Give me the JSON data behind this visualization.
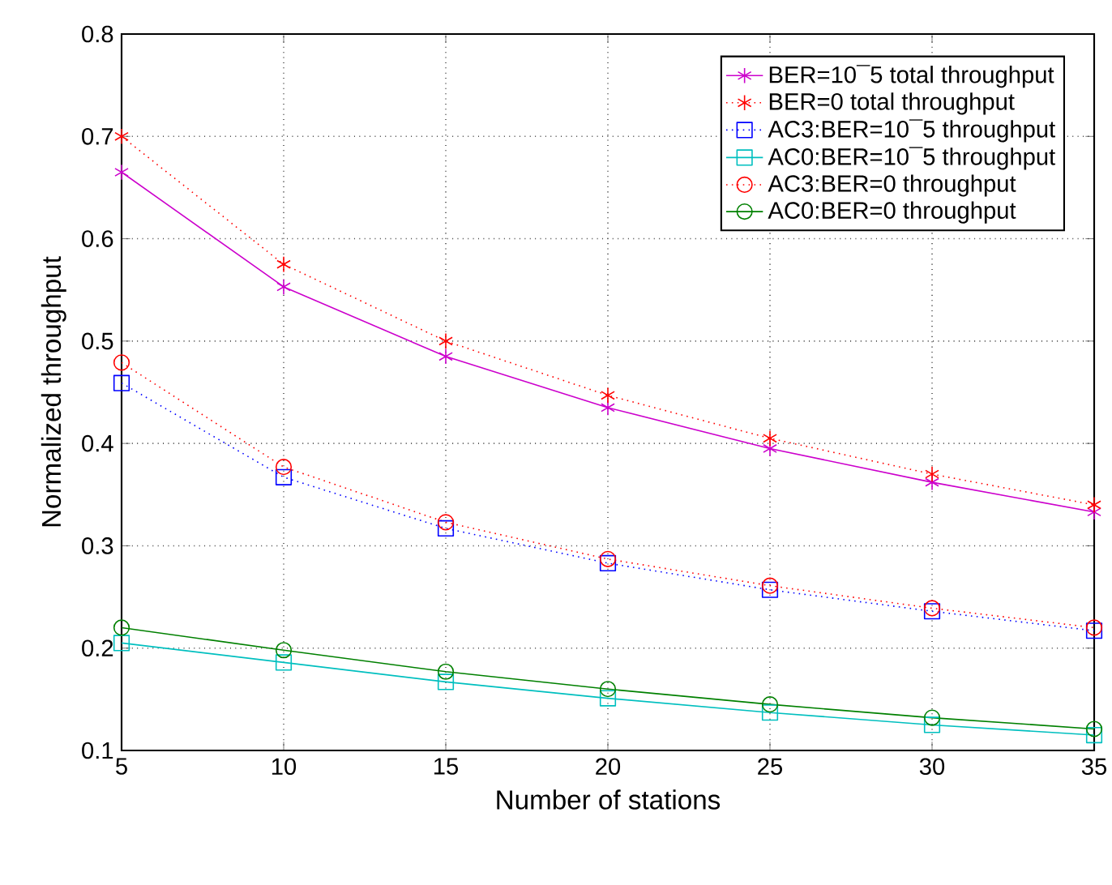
{
  "chart_data": {
    "type": "line",
    "xlabel": "Number of stations",
    "ylabel": "Normalized throughput",
    "x": [
      5,
      10,
      15,
      20,
      25,
      30,
      35
    ],
    "xlim": [
      5,
      35
    ],
    "xticks": [
      5,
      10,
      15,
      20,
      25,
      30,
      35
    ],
    "ylim": [
      0.1,
      0.8
    ],
    "yticks": [
      0.1,
      0.2,
      0.3,
      0.4,
      0.5,
      0.6,
      0.7,
      0.8
    ],
    "grid": true,
    "legend": "top right",
    "series": [
      {
        "name": "BER=10¯5 total throughput",
        "color": "#cc00cc",
        "marker": "cross",
        "line_style": "solid",
        "values": [
          0.665,
          0.553,
          0.485,
          0.435,
          0.395,
          0.362,
          0.333
        ]
      },
      {
        "name": "BER=0  total throughput",
        "color": "#ff0000",
        "marker": "cross",
        "line_style": "dotted",
        "values": [
          0.7,
          0.575,
          0.5,
          0.447,
          0.405,
          0.37,
          0.34
        ]
      },
      {
        "name": "AC3:BER=10¯5 throughput",
        "color": "#0000ff",
        "marker": "square",
        "line_style": "dotted",
        "values": [
          0.459,
          0.367,
          0.317,
          0.283,
          0.257,
          0.236,
          0.217
        ]
      },
      {
        "name": "AC0:BER=10¯5 throughput",
        "color": "#00bfbf",
        "marker": "square",
        "line_style": "solid",
        "values": [
          0.205,
          0.186,
          0.167,
          0.151,
          0.137,
          0.125,
          0.115
        ]
      },
      {
        "name": "AC3:BER=0 throughput",
        "color": "#ff0000",
        "marker": "circle",
        "line_style": "dotted",
        "values": [
          0.479,
          0.377,
          0.323,
          0.287,
          0.261,
          0.239,
          0.22
        ]
      },
      {
        "name": "AC0:BER=0 throughput",
        "color": "#008000",
        "marker": "circle",
        "line_style": "solid",
        "values": [
          0.22,
          0.198,
          0.177,
          0.16,
          0.145,
          0.132,
          0.121
        ]
      }
    ]
  }
}
